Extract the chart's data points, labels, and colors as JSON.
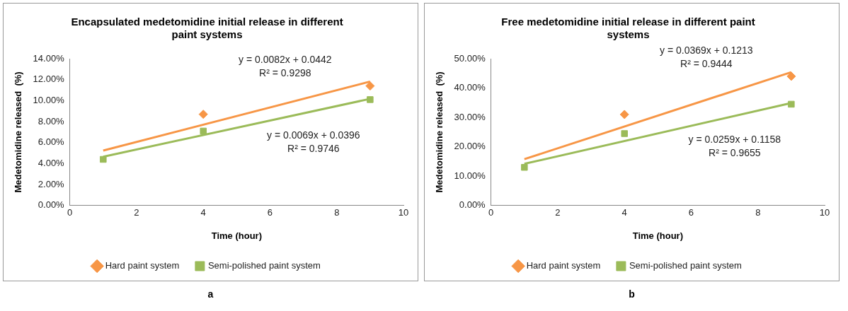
{
  "chart_data": [
    {
      "type": "scatter",
      "title": "Encapsulated medetomidine initial release in different paint systems",
      "xlabel": "Time (hour)",
      "ylabel": "Medetomidine released  (%)",
      "xlim": [
        0,
        10
      ],
      "xticks": [
        0,
        2,
        4,
        6,
        8,
        10
      ],
      "ylim": [
        0,
        14
      ],
      "yticks": [
        {
          "value": 0,
          "label": "0.00%"
        },
        {
          "value": 2,
          "label": "2.00%"
        },
        {
          "value": 4,
          "label": "4.00%"
        },
        {
          "value": 6,
          "label": "6.00%"
        },
        {
          "value": 8,
          "label": "8.00%"
        },
        {
          "value": 10,
          "label": "10.00%"
        },
        {
          "value": 12,
          "label": "12.00%"
        },
        {
          "value": 14,
          "label": "14.00%"
        }
      ],
      "grid": false,
      "legend": "bottom",
      "series": [
        {
          "name": "Hard paint system",
          "color": "#f79646",
          "marker": "diamond",
          "x": [
            4,
            9
          ],
          "values": [
            8.7,
            11.4
          ]
        },
        {
          "name": "Semi-polished paint system",
          "color": "#9bbb59",
          "marker": "square",
          "x": [
            1,
            4,
            9
          ],
          "values": [
            4.4,
            7.1,
            10.1
          ]
        },
        {
          "type": "line",
          "color": "#f79646",
          "x": [
            1,
            9
          ],
          "values": [
            5.24,
            11.82
          ]
        },
        {
          "type": "line",
          "color": "#9bbb59",
          "x": [
            1,
            9
          ],
          "values": [
            4.65,
            10.17
          ]
        }
      ],
      "annotations": [
        "y = 0.0082x + 0.0442",
        "R² = 0.9298",
        "y = 0.0069x + 0.0396",
        "R² = 0.9746",
        "a"
      ]
    },
    {
      "type": "scatter",
      "title": "Free medetomidine initial release in different paint systems",
      "xlabel": "Time (hour)",
      "ylabel": "Medetomidine released  (%)",
      "xlim": [
        0,
        10
      ],
      "xticks": [
        0,
        2,
        4,
        6,
        8,
        10
      ],
      "ylim": [
        0,
        50
      ],
      "yticks": [
        {
          "value": 0,
          "label": "0.00%"
        },
        {
          "value": 10,
          "label": "10.00%"
        },
        {
          "value": 20,
          "label": "20.00%"
        },
        {
          "value": 30,
          "label": "30.00%"
        },
        {
          "value": 40,
          "label": "40.00%"
        },
        {
          "value": 50,
          "label": "50.00%"
        }
      ],
      "grid": false,
      "legend": "bottom",
      "series": [
        {
          "name": "Hard paint system",
          "color": "#f79646",
          "marker": "diamond",
          "x": [
            4,
            9
          ],
          "values": [
            31,
            44
          ]
        },
        {
          "name": "Semi-polished paint system",
          "color": "#9bbb59",
          "marker": "square",
          "x": [
            1,
            4,
            9
          ],
          "values": [
            13,
            24.5,
            34.5
          ]
        },
        {
          "type": "line",
          "color": "#f79646",
          "x": [
            1,
            9
          ],
          "values": [
            15.8,
            45.4
          ]
        },
        {
          "type": "line",
          "color": "#9bbb59",
          "x": [
            1,
            9
          ],
          "values": [
            14.2,
            34.9
          ]
        }
      ],
      "annotations": [
        "y = 0.0369x + 0.1213",
        "R² = 0.9444",
        "y = 0.0259x + 0.1158",
        "R² = 0.9655",
        "b"
      ]
    }
  ]
}
